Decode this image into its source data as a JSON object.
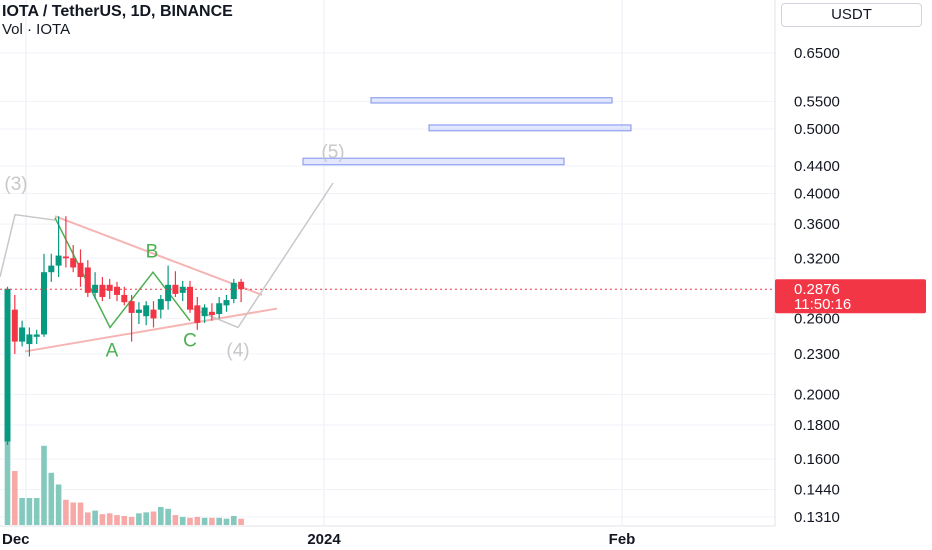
{
  "header": {
    "title": "IOTA / TetherUS, 1D, BINANCE",
    "volume_label": "Vol · IOTA"
  },
  "currency_button": {
    "label": "USDT"
  },
  "colors": {
    "up": "#089981",
    "down": "#f23645",
    "vol_up": "#84c9bd",
    "vol_down": "#f7a9a7",
    "wave_green": "#4caf50",
    "triangle": "#f5b5b3",
    "projection": "#c8c8c8",
    "target_box": "#8ea1ef",
    "grid": "#f0f3fa"
  },
  "chart_data": {
    "type": "candlestick",
    "symbol": "IOTA / TetherUS",
    "interval": "1D",
    "exchange": "BINANCE",
    "y_scale": "log",
    "y_ticks": [
      "0.6500",
      "0.5500",
      "0.5000",
      "0.4400",
      "0.4000",
      "0.3600",
      "0.3200",
      "0.2600",
      "0.2300",
      "0.2000",
      "0.1800",
      "0.1600",
      "0.1440",
      "0.1310"
    ],
    "x_ticks": [
      "Dec",
      "2024",
      "Feb"
    ],
    "last_price": {
      "value": "0.2876",
      "countdown": "11:50:16"
    },
    "candles": [
      {
        "o": 0.17,
        "h": 0.29,
        "l": 0.168,
        "c": 0.288
      },
      {
        "o": 0.268,
        "h": 0.282,
        "l": 0.23,
        "c": 0.24
      },
      {
        "o": 0.24,
        "h": 0.258,
        "l": 0.236,
        "c": 0.252
      },
      {
        "o": 0.238,
        "h": 0.252,
        "l": 0.228,
        "c": 0.246
      },
      {
        "o": 0.244,
        "h": 0.25,
        "l": 0.238,
        "c": 0.246
      },
      {
        "o": 0.246,
        "h": 0.325,
        "l": 0.244,
        "c": 0.305
      },
      {
        "o": 0.305,
        "h": 0.325,
        "l": 0.295,
        "c": 0.312
      },
      {
        "o": 0.312,
        "h": 0.37,
        "l": 0.3,
        "c": 0.323
      },
      {
        "o": 0.322,
        "h": 0.37,
        "l": 0.31,
        "c": 0.32
      },
      {
        "o": 0.32,
        "h": 0.335,
        "l": 0.305,
        "c": 0.31
      },
      {
        "o": 0.315,
        "h": 0.33,
        "l": 0.29,
        "c": 0.3
      },
      {
        "o": 0.31,
        "h": 0.318,
        "l": 0.28,
        "c": 0.284
      },
      {
        "o": 0.284,
        "h": 0.305,
        "l": 0.278,
        "c": 0.292
      },
      {
        "o": 0.292,
        "h": 0.3,
        "l": 0.276,
        "c": 0.28
      },
      {
        "o": 0.292,
        "h": 0.298,
        "l": 0.278,
        "c": 0.286
      },
      {
        "o": 0.29,
        "h": 0.295,
        "l": 0.276,
        "c": 0.282
      },
      {
        "o": 0.282,
        "h": 0.29,
        "l": 0.272,
        "c": 0.275
      },
      {
        "o": 0.276,
        "h": 0.282,
        "l": 0.24,
        "c": 0.265
      },
      {
        "o": 0.265,
        "h": 0.275,
        "l": 0.255,
        "c": 0.268
      },
      {
        "o": 0.262,
        "h": 0.276,
        "l": 0.254,
        "c": 0.272
      },
      {
        "o": 0.268,
        "h": 0.276,
        "l": 0.252,
        "c": 0.26
      },
      {
        "o": 0.268,
        "h": 0.282,
        "l": 0.26,
        "c": 0.278
      },
      {
        "o": 0.276,
        "h": 0.312,
        "l": 0.268,
        "c": 0.292
      },
      {
        "o": 0.292,
        "h": 0.306,
        "l": 0.28,
        "c": 0.283
      },
      {
        "o": 0.284,
        "h": 0.296,
        "l": 0.276,
        "c": 0.29
      },
      {
        "o": 0.29,
        "h": 0.296,
        "l": 0.265,
        "c": 0.268
      },
      {
        "o": 0.272,
        "h": 0.28,
        "l": 0.25,
        "c": 0.256
      },
      {
        "o": 0.262,
        "h": 0.273,
        "l": 0.256,
        "c": 0.27
      },
      {
        "o": 0.266,
        "h": 0.274,
        "l": 0.258,
        "c": 0.263
      },
      {
        "o": 0.264,
        "h": 0.28,
        "l": 0.26,
        "c": 0.274
      },
      {
        "o": 0.272,
        "h": 0.282,
        "l": 0.266,
        "c": 0.277
      },
      {
        "o": 0.278,
        "h": 0.298,
        "l": 0.274,
        "c": 0.294
      },
      {
        "o": 0.295,
        "h": 0.298,
        "l": 0.275,
        "c": 0.2876
      }
    ],
    "volume": [
      100,
      60,
      30,
      30,
      30,
      88,
      58,
      45,
      28,
      25,
      25,
      14,
      16,
      12,
      13,
      11,
      10,
      9,
      13,
      14,
      15,
      20,
      18,
      11,
      9,
      8,
      9,
      8,
      8,
      8,
      7,
      10,
      7
    ],
    "wave_labels": [
      "(3)",
      "A",
      "B",
      "C",
      "(4)",
      "(5)"
    ],
    "target_levels": [
      {
        "from": 0.547,
        "to": 0.557
      },
      {
        "from": 0.497,
        "to": 0.507
      },
      {
        "from": 0.442,
        "to": 0.452
      }
    ],
    "elliott_projection": [
      0.365,
      0.252,
      0.415
    ],
    "triangle_upper": [
      0.37,
      0.282
    ],
    "triangle_lower": [
      0.232,
      0.269
    ]
  }
}
